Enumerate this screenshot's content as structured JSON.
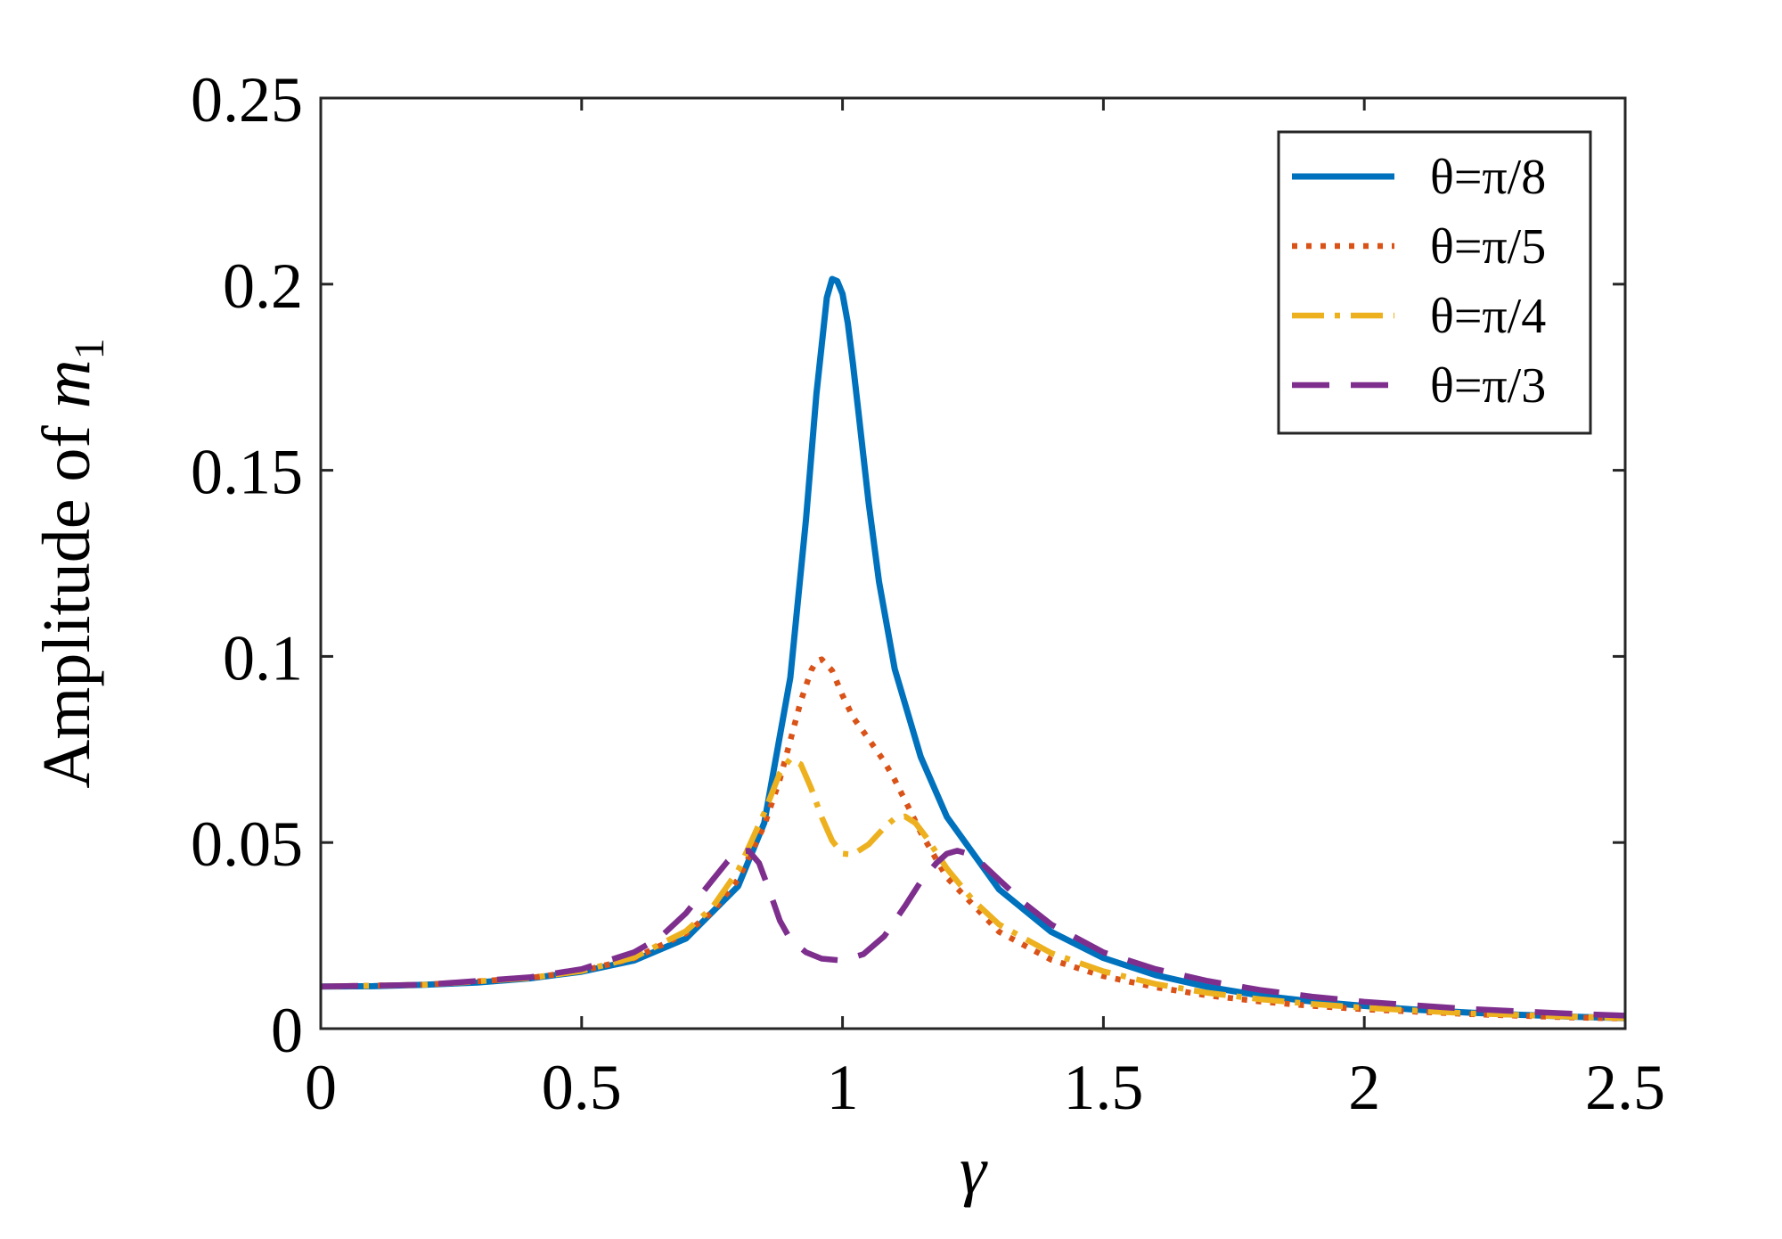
{
  "chart_data": {
    "type": "line",
    "title": "",
    "xlabel": "γ",
    "ylabel_prefix": "Amplitude of ",
    "ylabel_var": "m",
    "ylabel_sub": "1",
    "xlim": [
      0,
      2.5
    ],
    "ylim": [
      0,
      0.25
    ],
    "xticks": [
      0,
      0.5,
      1,
      1.5,
      2,
      2.5
    ],
    "yticks": [
      0,
      0.05,
      0.1,
      0.15,
      0.2,
      0.25
    ],
    "xtick_labels": [
      "0",
      "0.5",
      "1",
      "1.5",
      "2",
      "2.5"
    ],
    "ytick_labels": [
      "0",
      "0.05",
      "0.1",
      "0.15",
      "0.2",
      "0.25"
    ],
    "grid": false,
    "legend_position": "top-right",
    "series": [
      {
        "name": "θ=π/8",
        "color": "#0072BD",
        "style": "solid",
        "x": [
          0,
          0.1,
          0.2,
          0.3,
          0.4,
          0.5,
          0.6,
          0.7,
          0.8,
          0.85,
          0.9,
          0.93,
          0.95,
          0.97,
          0.98,
          0.99,
          1.0,
          1.01,
          1.02,
          1.03,
          1.05,
          1.07,
          1.1,
          1.15,
          1.2,
          1.3,
          1.4,
          1.5,
          1.6,
          1.7,
          1.8,
          1.9,
          2.0,
          2.1,
          2.2,
          2.3,
          2.4,
          2.5
        ],
        "y": [
          0.0113,
          0.0114,
          0.0118,
          0.0124,
          0.0135,
          0.0153,
          0.0183,
          0.0242,
          0.0383,
          0.0553,
          0.0943,
          0.1368,
          0.1705,
          0.1964,
          0.2014,
          0.2008,
          0.1974,
          0.1896,
          0.1786,
          0.1662,
          0.1413,
          0.12,
          0.0966,
          0.073,
          0.0569,
          0.0374,
          0.026,
          0.019,
          0.0144,
          0.0112,
          0.0089,
          0.0073,
          0.0061,
          0.0051,
          0.0043,
          0.0037,
          0.0032,
          0.0028
        ]
      },
      {
        "name": "θ=π/5",
        "color": "#D95319",
        "style": "dotted",
        "x": [
          0,
          0.2,
          0.4,
          0.5,
          0.6,
          0.7,
          0.75,
          0.8,
          0.85,
          0.88,
          0.9,
          0.92,
          0.94,
          0.95,
          0.96,
          0.98,
          1.0,
          1.02,
          1.05,
          1.08,
          1.1,
          1.13,
          1.15,
          1.2,
          1.3,
          1.4,
          1.5,
          1.6,
          1.7,
          1.8,
          1.9,
          2.0,
          2.2,
          2.4,
          2.5
        ],
        "y": [
          0.0113,
          0.0118,
          0.0136,
          0.0155,
          0.0189,
          0.0256,
          0.0313,
          0.0401,
          0.0546,
          0.067,
          0.0774,
          0.088,
          0.0963,
          0.0987,
          0.0992,
          0.0962,
          0.0895,
          0.0837,
          0.0778,
          0.0718,
          0.0668,
          0.0585,
          0.0527,
          0.0406,
          0.026,
          0.0185,
          0.0141,
          0.0111,
          0.0089,
          0.0073,
          0.0061,
          0.0052,
          0.0039,
          0.003,
          0.0027
        ]
      },
      {
        "name": "θ=π/4",
        "color": "#EDB120",
        "style": "dashdot",
        "x": [
          0,
          0.2,
          0.4,
          0.5,
          0.6,
          0.7,
          0.75,
          0.8,
          0.85,
          0.88,
          0.9,
          0.92,
          0.94,
          0.96,
          0.98,
          1.0,
          1.02,
          1.05,
          1.08,
          1.1,
          1.12,
          1.14,
          1.16,
          1.2,
          1.25,
          1.3,
          1.4,
          1.5,
          1.6,
          1.7,
          1.8,
          1.9,
          2.0,
          2.2,
          2.4,
          2.5
        ],
        "y": [
          0.0113,
          0.0118,
          0.0136,
          0.0155,
          0.0191,
          0.0262,
          0.0325,
          0.0425,
          0.058,
          0.0687,
          0.0725,
          0.071,
          0.0645,
          0.0568,
          0.0505,
          0.047,
          0.0468,
          0.0495,
          0.054,
          0.0565,
          0.057,
          0.0552,
          0.0515,
          0.043,
          0.0345,
          0.028,
          0.0203,
          0.0154,
          0.012,
          0.0096,
          0.0079,
          0.0066,
          0.0056,
          0.0041,
          0.0032,
          0.0028
        ]
      },
      {
        "name": "θ=π/3",
        "color": "#7E2F8E",
        "style": "dashed",
        "x": [
          0,
          0.2,
          0.4,
          0.5,
          0.6,
          0.65,
          0.7,
          0.75,
          0.78,
          0.8,
          0.82,
          0.84,
          0.86,
          0.88,
          0.9,
          0.93,
          0.96,
          1.0,
          1.04,
          1.08,
          1.12,
          1.15,
          1.18,
          1.2,
          1.22,
          1.24,
          1.27,
          1.3,
          1.35,
          1.4,
          1.5,
          1.6,
          1.7,
          1.8,
          1.9,
          2.0,
          2.2,
          2.4,
          2.5
        ],
        "y": [
          0.0113,
          0.0118,
          0.0138,
          0.016,
          0.0205,
          0.0245,
          0.031,
          0.0398,
          0.045,
          0.0475,
          0.0478,
          0.0445,
          0.037,
          0.029,
          0.024,
          0.0205,
          0.0188,
          0.0183,
          0.02,
          0.0248,
          0.033,
          0.0395,
          0.0445,
          0.047,
          0.0478,
          0.047,
          0.044,
          0.04,
          0.0335,
          0.028,
          0.0205,
          0.016,
          0.0128,
          0.0104,
          0.0086,
          0.0072,
          0.0053,
          0.004,
          0.0035
        ]
      }
    ]
  }
}
